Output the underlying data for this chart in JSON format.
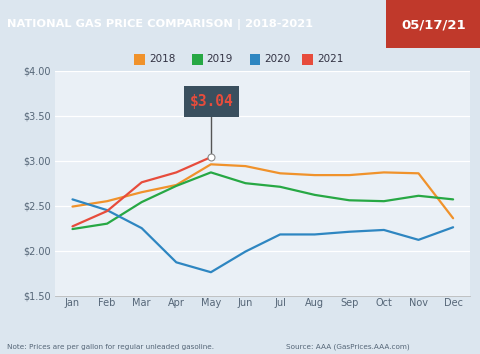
{
  "title": "NATIONAL GAS PRICE COMPARISON | 2018-2021",
  "date_label": "05/17/21",
  "title_bg": "#1b4f8c",
  "date_bg": "#c0392b",
  "chart_bg": "#eaf0f6",
  "outer_bg": "#dce6ef",
  "annotation_price": "$3.04",
  "ylim": [
    1.5,
    4.0
  ],
  "note_text": "Note: Prices are per gallon for regular unleaded gasoline.",
  "source_text": "Source: AAA (GasPrices.AAA.com)",
  "months": [
    "Jan",
    "Feb",
    "Mar",
    "Apr",
    "May",
    "Jun",
    "Jul",
    "Aug",
    "Sep",
    "Oct",
    "Nov",
    "Dec"
  ],
  "colors": {
    "2018": "#f0922b",
    "2019": "#27a844",
    "2020": "#2e86c1",
    "2021": "#e74c3c"
  },
  "data_2018": [
    2.49,
    2.55,
    2.65,
    2.73,
    2.96,
    2.94,
    2.86,
    2.84,
    2.84,
    2.87,
    2.86,
    2.36
  ],
  "data_2019": [
    2.24,
    2.3,
    2.54,
    2.72,
    2.87,
    2.75,
    2.71,
    2.62,
    2.56,
    2.55,
    2.61,
    2.57
  ],
  "data_2020": [
    2.57,
    2.45,
    2.25,
    1.87,
    1.76,
    1.99,
    2.18,
    2.18,
    2.21,
    2.23,
    2.12,
    2.26
  ],
  "data_2021": [
    2.27,
    2.44,
    2.76,
    2.87,
    3.04,
    null,
    null,
    null,
    null,
    null,
    null,
    null
  ],
  "legend_items": [
    "2018",
    "2019",
    "2020",
    "2021"
  ]
}
